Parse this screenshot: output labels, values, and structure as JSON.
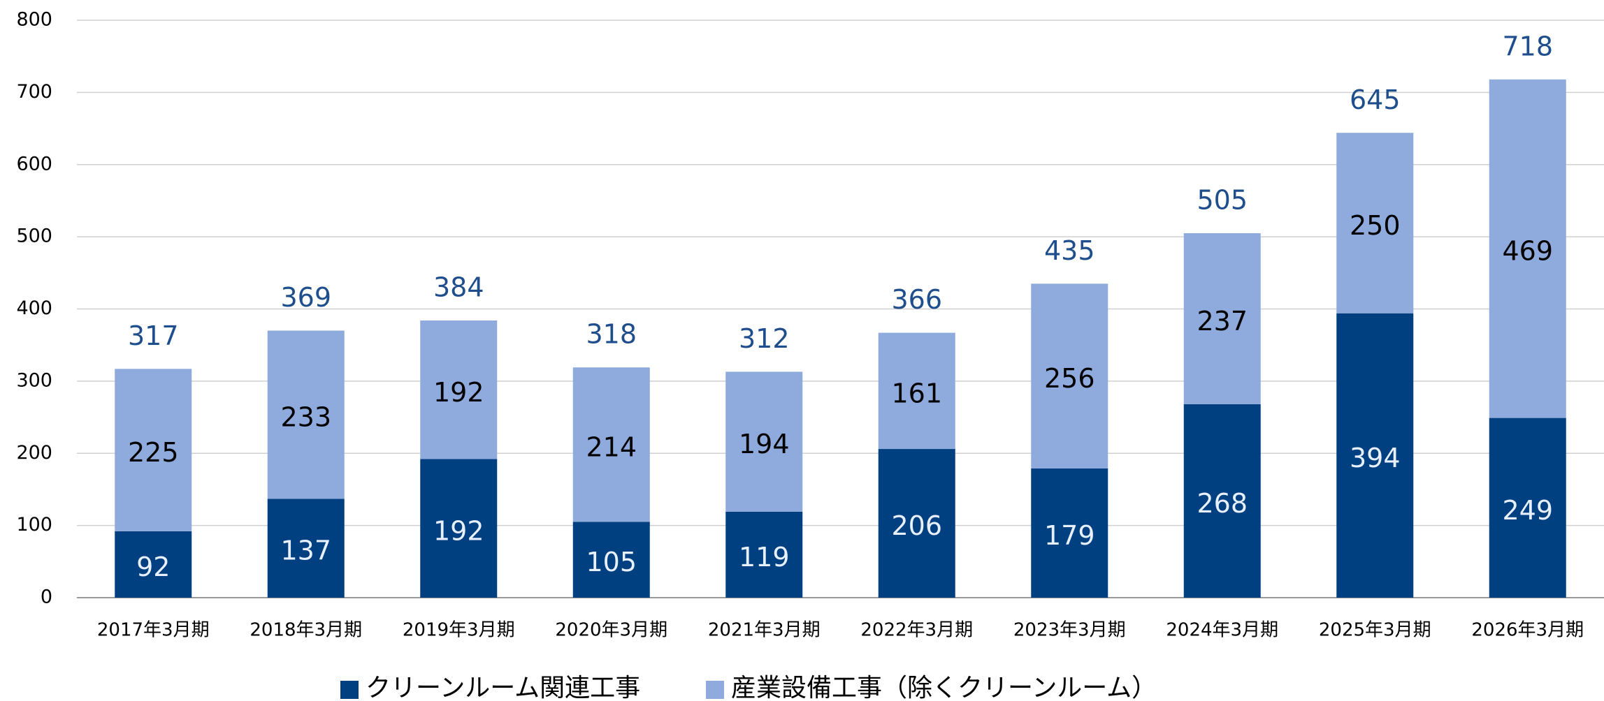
{
  "chart_data": {
    "type": "stacked_bar",
    "categories": [
      "2017年3月期",
      "2018年3月期",
      "2019年3月期",
      "2020年3月期",
      "2021年3月期",
      "2022年3月期",
      "2023年3月期",
      "2024年3月期",
      "2025年3月期",
      "2026年3月期"
    ],
    "series": [
      {
        "name": "クリーンルーム関連工事",
        "color": "#004080",
        "values": [
          92,
          137,
          192,
          105,
          119,
          206,
          179,
          268,
          394,
          249
        ]
      },
      {
        "name": "産業設備工事（除くクリーンルーム）",
        "color": "#8faadc",
        "values": [
          225,
          233,
          192,
          214,
          194,
          161,
          256,
          237,
          250,
          469
        ]
      }
    ],
    "totals": [
      317,
      369,
      384,
      318,
      312,
      366,
      435,
      505,
      645,
      718
    ],
    "ylim": [
      0,
      800
    ],
    "yticks": [
      0,
      100,
      200,
      300,
      400,
      500,
      600,
      700,
      800
    ],
    "grid": true,
    "legend": "bottom"
  }
}
